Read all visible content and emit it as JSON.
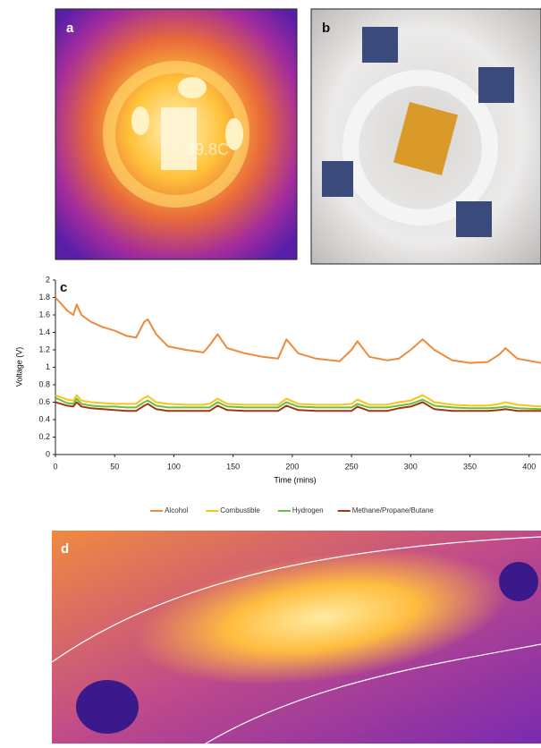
{
  "panels": {
    "a": {
      "label": "a",
      "readout": "39.8C"
    },
    "b": {
      "label": "b"
    },
    "c": {
      "label": "c"
    },
    "d": {
      "label": "d"
    }
  },
  "chart_data": {
    "type": "line",
    "y_label": "Voltage (V)",
    "x_label": "Time (mins)",
    "x": [
      0,
      10,
      15,
      18,
      22,
      30,
      40,
      50,
      60,
      68,
      75,
      78,
      85,
      95,
      110,
      125,
      130,
      137,
      145,
      160,
      175,
      188,
      195,
      205,
      220,
      240,
      250,
      255,
      265,
      280,
      290,
      300,
      310,
      320,
      335,
      350,
      365,
      375,
      380,
      390,
      410
    ],
    "series": [
      {
        "name": "Alcohol",
        "color": "#ee8a3c",
        "values": [
          1.8,
          1.65,
          1.6,
          1.72,
          1.6,
          1.52,
          1.46,
          1.42,
          1.36,
          1.34,
          1.52,
          1.55,
          1.38,
          1.24,
          1.2,
          1.17,
          1.25,
          1.38,
          1.22,
          1.16,
          1.12,
          1.1,
          1.32,
          1.16,
          1.1,
          1.07,
          1.2,
          1.3,
          1.12,
          1.08,
          1.1,
          1.2,
          1.32,
          1.2,
          1.08,
          1.05,
          1.06,
          1.15,
          1.22,
          1.1,
          1.05
        ]
      },
      {
        "name": "Combustible",
        "color": "#f5c518",
        "values": [
          0.68,
          0.63,
          0.62,
          0.68,
          0.62,
          0.6,
          0.59,
          0.58,
          0.58,
          0.58,
          0.65,
          0.67,
          0.6,
          0.58,
          0.57,
          0.57,
          0.58,
          0.64,
          0.58,
          0.57,
          0.57,
          0.57,
          0.64,
          0.58,
          0.57,
          0.57,
          0.58,
          0.63,
          0.57,
          0.57,
          0.6,
          0.62,
          0.68,
          0.6,
          0.57,
          0.56,
          0.56,
          0.58,
          0.6,
          0.57,
          0.55
        ]
      },
      {
        "name": "Hydrogen",
        "color": "#6cbf3e",
        "values": [
          0.65,
          0.59,
          0.58,
          0.64,
          0.58,
          0.56,
          0.55,
          0.55,
          0.54,
          0.54,
          0.6,
          0.62,
          0.56,
          0.54,
          0.54,
          0.54,
          0.54,
          0.6,
          0.55,
          0.54,
          0.54,
          0.54,
          0.6,
          0.55,
          0.54,
          0.54,
          0.54,
          0.58,
          0.54,
          0.54,
          0.56,
          0.58,
          0.63,
          0.56,
          0.54,
          0.53,
          0.53,
          0.54,
          0.55,
          0.53,
          0.52
        ]
      },
      {
        "name": "Methane/Propane/Butane",
        "color": "#9e3a12",
        "values": [
          0.6,
          0.56,
          0.55,
          0.6,
          0.55,
          0.53,
          0.52,
          0.51,
          0.5,
          0.5,
          0.56,
          0.58,
          0.52,
          0.5,
          0.5,
          0.5,
          0.5,
          0.56,
          0.51,
          0.5,
          0.5,
          0.5,
          0.56,
          0.51,
          0.5,
          0.5,
          0.5,
          0.55,
          0.5,
          0.5,
          0.53,
          0.55,
          0.6,
          0.52,
          0.5,
          0.5,
          0.5,
          0.51,
          0.52,
          0.5,
          0.5
        ]
      }
    ],
    "xlim": [
      0,
      410
    ],
    "xticks": [
      0,
      50,
      100,
      150,
      200,
      250,
      300,
      350,
      400
    ],
    "ylim": [
      0,
      2
    ],
    "yticks": [
      0,
      0.2,
      0.4,
      0.6,
      0.8,
      1,
      1.2,
      1.4,
      1.6,
      1.8,
      2
    ],
    "legend": "bottom"
  }
}
